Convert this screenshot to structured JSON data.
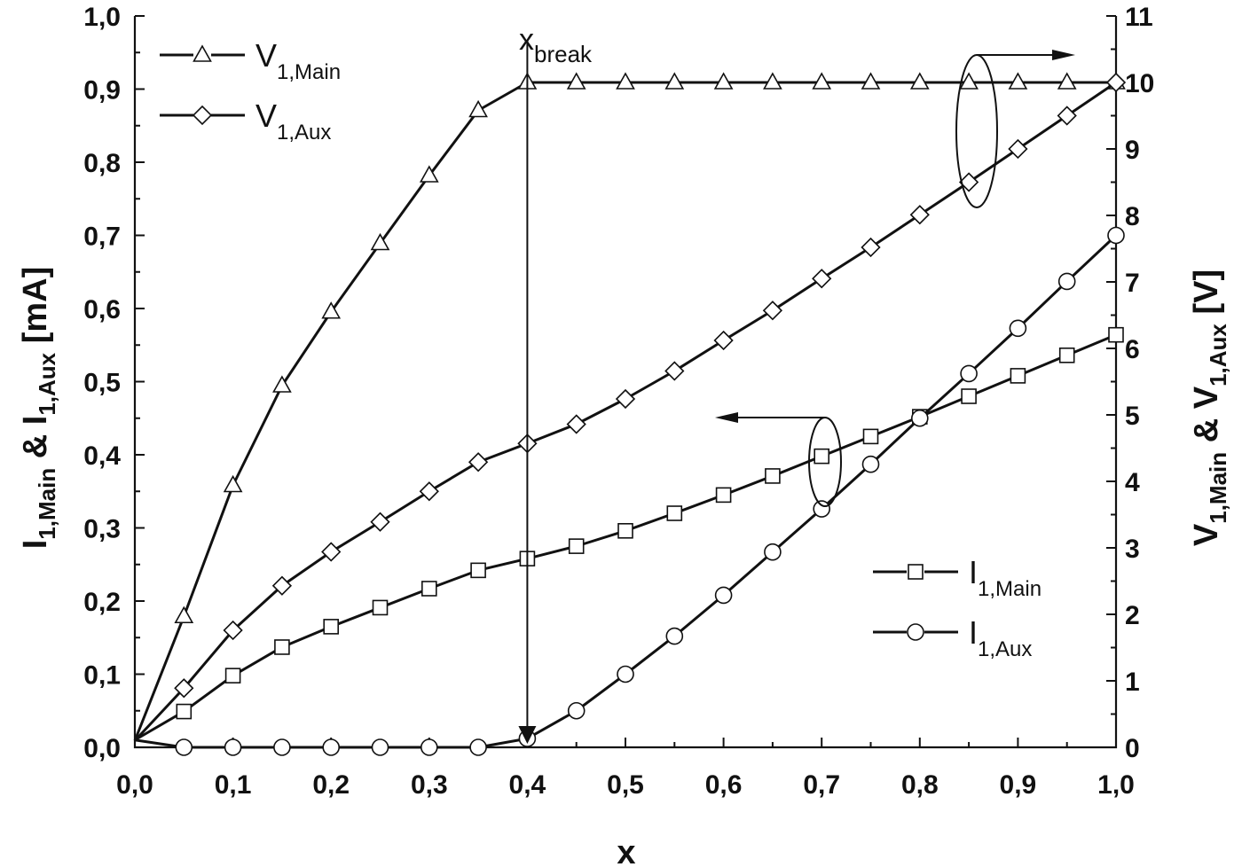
{
  "chart_data": {
    "type": "line",
    "x": [
      0,
      0.05,
      0.1,
      0.15,
      0.2,
      0.25,
      0.3,
      0.35,
      0.4,
      0.45,
      0.5,
      0.55,
      0.6,
      0.65,
      0.7,
      0.75,
      0.8,
      0.85,
      0.9,
      0.95,
      1.0
    ],
    "xlabel": "x",
    "ylabel_left": {
      "main": "I",
      "sub1": "1,Main",
      "mid": " & I",
      "sub2": "1,Aux",
      "end": " [mA]"
    },
    "ylabel_right": {
      "main": "V",
      "sub1": "1,Main",
      "mid": " & V",
      "sub2": "1,Aux",
      "end": " [V]"
    },
    "xlim": [
      0,
      1.0
    ],
    "ylim_left": [
      0,
      1.0
    ],
    "ylim_right": [
      0,
      11
    ],
    "x_ticks": [
      "0,0",
      "0,1",
      "0,2",
      "0,3",
      "0,4",
      "0,5",
      "0,6",
      "0,7",
      "0,8",
      "0,9",
      "1,0"
    ],
    "y_left_ticks": [
      "0,0",
      "0,1",
      "0,2",
      "0,3",
      "0,4",
      "0,5",
      "0,6",
      "0,7",
      "0,8",
      "0,9",
      "1,0"
    ],
    "y_right_ticks": [
      "0",
      "1",
      "2",
      "3",
      "4",
      "5",
      "6",
      "7",
      "8",
      "9",
      "10",
      "11"
    ],
    "series": [
      {
        "name": "V_1,Main",
        "label_main": "V",
        "label_sub": "1,Main",
        "axis": "right",
        "marker": "triangle",
        "values": [
          0.1,
          1.97,
          3.94,
          5.44,
          6.55,
          7.58,
          8.6,
          9.58,
          10.0,
          10.0,
          10.0,
          10.0,
          10.0,
          10.0,
          10.0,
          10.0,
          10.0,
          10.0,
          10.0,
          10.0,
          10.0
        ]
      },
      {
        "name": "V_1,Aux",
        "label_main": "V",
        "label_sub": "1,Aux",
        "axis": "right",
        "marker": "diamond",
        "values": [
          0.1,
          0.89,
          1.76,
          2.43,
          2.94,
          3.39,
          3.85,
          4.29,
          4.57,
          4.86,
          5.24,
          5.66,
          6.12,
          6.57,
          7.05,
          7.52,
          8.01,
          8.5,
          9.0,
          9.5,
          10.0
        ]
      },
      {
        "name": "I_1,Main",
        "label_main": "I",
        "label_sub": "1,Main",
        "axis": "left",
        "marker": "square",
        "values": [
          0.01,
          0.049,
          0.098,
          0.137,
          0.165,
          0.191,
          0.217,
          0.242,
          0.258,
          0.275,
          0.296,
          0.32,
          0.345,
          0.371,
          0.398,
          0.425,
          0.452,
          0.48,
          0.508,
          0.536,
          0.564
        ]
      },
      {
        "name": "I_1,Aux",
        "label_main": "I",
        "label_sub": "1,Aux",
        "axis": "left",
        "marker": "circle",
        "values": [
          0.01,
          0,
          0,
          0,
          0,
          0,
          0,
          0,
          0.012,
          0.05,
          0.1,
          0.152,
          0.208,
          0.267,
          0.326,
          0.387,
          0.45,
          0.511,
          0.573,
          0.637,
          0.7
        ]
      }
    ],
    "annotations": {
      "break_label_main": "x",
      "break_label_sub": "break",
      "break_x": 0.4
    },
    "grid": false,
    "legend_positions": {
      "voltage": "top-left",
      "current": "bottom-right"
    }
  }
}
